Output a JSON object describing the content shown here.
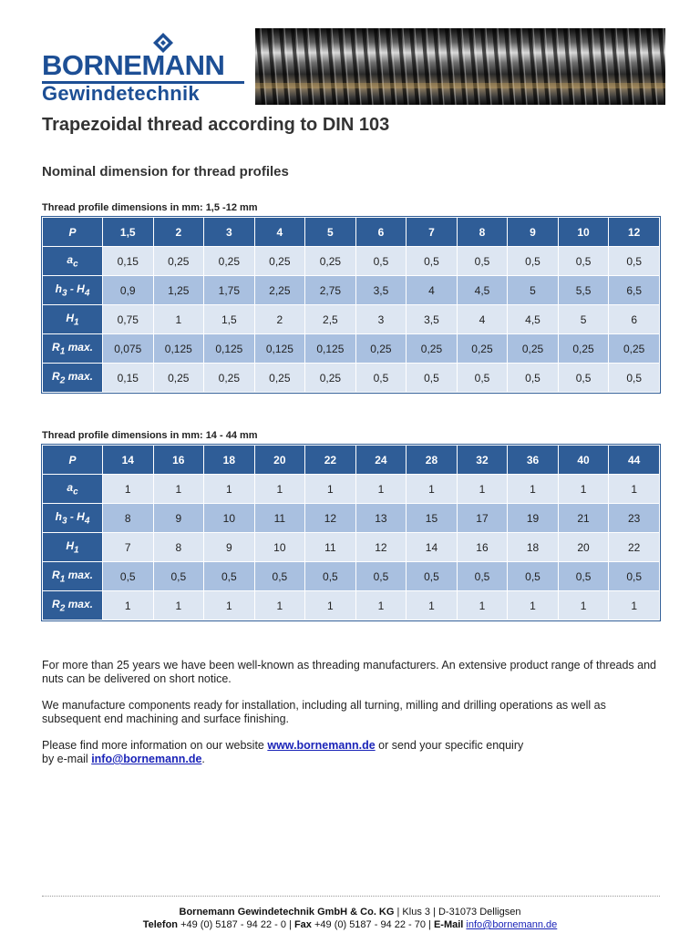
{
  "brand": {
    "name": "BORNEMANN",
    "tagline": "Gewindetechnik",
    "color": "#1d4f95"
  },
  "page_title": "Trapezoidal thread according to DIN 103",
  "subtitle": "Nominal dimension for thread profiles",
  "tables": [
    {
      "caption": "Thread profile dimensions in mm: 1,5 -12 mm",
      "header": {
        "label": "P",
        "values": [
          "1,5",
          "2",
          "3",
          "4",
          "5",
          "6",
          "7",
          "8",
          "9",
          "10",
          "12"
        ]
      },
      "rows": [
        {
          "label": "a",
          "sub": "c",
          "suffix": "",
          "values": [
            "0,15",
            "0,25",
            "0,25",
            "0,25",
            "0,25",
            "0,5",
            "0,5",
            "0,5",
            "0,5",
            "0,5",
            "0,5"
          ]
        },
        {
          "label": "h",
          "sub": "3",
          "suffix": " - H",
          "sub2": "4",
          "values": [
            "0,9",
            "1,25",
            "1,75",
            "2,25",
            "2,75",
            "3,5",
            "4",
            "4,5",
            "5",
            "5,5",
            "6,5"
          ]
        },
        {
          "label": "H",
          "sub": "1",
          "suffix": "",
          "values": [
            "0,75",
            "1",
            "1,5",
            "2",
            "2,5",
            "3",
            "3,5",
            "4",
            "4,5",
            "5",
            "6"
          ]
        },
        {
          "label": "R",
          "sub": "1",
          "suffix": " max.",
          "values": [
            "0,075",
            "0,125",
            "0,125",
            "0,125",
            "0,125",
            "0,25",
            "0,25",
            "0,25",
            "0,25",
            "0,25",
            "0,25"
          ]
        },
        {
          "label": "R",
          "sub": "2",
          "suffix": " max.",
          "values": [
            "0,15",
            "0,25",
            "0,25",
            "0,25",
            "0,25",
            "0,5",
            "0,5",
            "0,5",
            "0,5",
            "0,5",
            "0,5"
          ]
        }
      ]
    },
    {
      "caption": "Thread profile dimensions in mm: 14 - 44 mm",
      "header": {
        "label": "P",
        "values": [
          "14",
          "16",
          "18",
          "20",
          "22",
          "24",
          "28",
          "32",
          "36",
          "40",
          "44"
        ]
      },
      "rows": [
        {
          "label": "a",
          "sub": "c",
          "suffix": "",
          "values": [
            "1",
            "1",
            "1",
            "1",
            "1",
            "1",
            "1",
            "1",
            "1",
            "1",
            "1"
          ]
        },
        {
          "label": "h",
          "sub": "3",
          "suffix": " - H",
          "sub2": "4",
          "values": [
            "8",
            "9",
            "10",
            "11",
            "12",
            "13",
            "15",
            "17",
            "19",
            "21",
            "23"
          ]
        },
        {
          "label": "H",
          "sub": "1",
          "suffix": "",
          "values": [
            "7",
            "8",
            "9",
            "10",
            "11",
            "12",
            "14",
            "16",
            "18",
            "20",
            "22"
          ]
        },
        {
          "label": "R",
          "sub": "1",
          "suffix": " max.",
          "values": [
            "0,5",
            "0,5",
            "0,5",
            "0,5",
            "0,5",
            "0,5",
            "0,5",
            "0,5",
            "0,5",
            "0,5",
            "0,5"
          ]
        },
        {
          "label": "R",
          "sub": "2",
          "suffix": " max.",
          "values": [
            "1",
            "1",
            "1",
            "1",
            "1",
            "1",
            "1",
            "1",
            "1",
            "1",
            "1"
          ]
        }
      ]
    }
  ],
  "paragraphs": {
    "p1": "For more than 25 years we have been well-known as threading manufacturers. An extensive product range of threads and nuts can be delivered on short notice.",
    "p2": "We manufacture components ready for installation, including all turning, milling and drilling operations as well as subsequent end machining and surface finishing.",
    "p3_a": "Please find more information on our website ",
    "p3_link": "www.bornemann.de",
    "p3_b": " or send your specific enquiry",
    "p3_c": "by e-mail ",
    "p3_email": "info@bornemann.de",
    "p3_d": "."
  },
  "footer": {
    "company": "Bornemann Gewindetechnik GmbH & Co. KG",
    "address_sep1": " | ",
    "street": "Klus 3",
    "address_sep2": " | ",
    "city": "D-31073 Delligsen",
    "phone_label": "Telefon",
    "phone": " +49 (0) 5187 - 94 22 - 0 | ",
    "fax_label": "Fax",
    "fax": " +49 (0) 5187 - 94 22 - 70 | ",
    "email_label": "E-Mail",
    "email": "info@bornemann.de"
  },
  "colors": {
    "table_header": "#2f5d97",
    "row_light": "#dde6f2",
    "row_dark": "#a9c0e0",
    "link": "#1a23b8"
  }
}
